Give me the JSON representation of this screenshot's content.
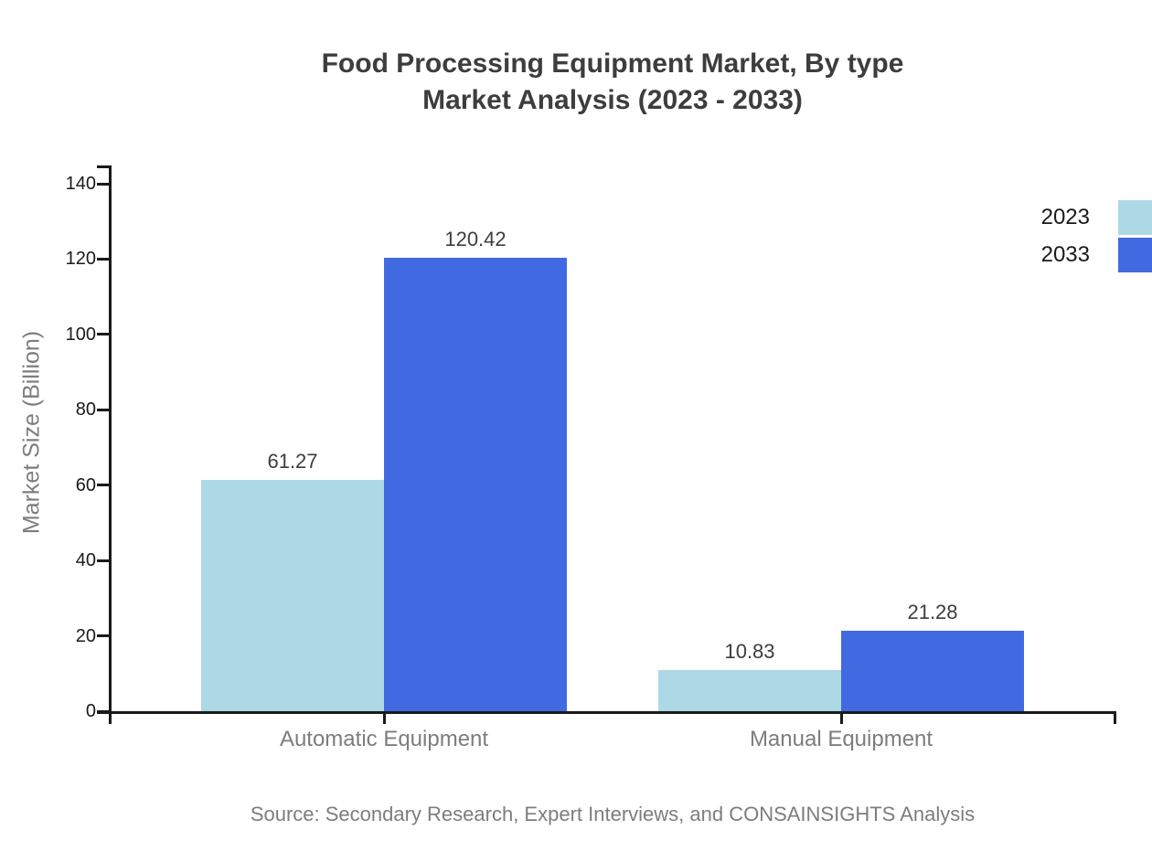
{
  "page": {
    "title_line1": "Food Processing Equipment Market, By type",
    "title_line2": "Market Analysis (2023 - 2033)",
    "source": "Source: Secondary Research, Expert Interviews, and CONSAINSIGHTS Analysis"
  },
  "chart_data": {
    "type": "bar",
    "title": "Food Processing Equipment Market, By type Market Analysis (2023 - 2033)",
    "categories": [
      "Automatic Equipment",
      "Manual Equipment"
    ],
    "series": [
      {
        "name": "2023",
        "color": "#ADD8E6",
        "values": [
          61.27,
          10.83
        ]
      },
      {
        "name": "2033",
        "color": "#4169E1",
        "values": [
          120.42,
          21.28
        ]
      }
    ],
    "xlabel": "",
    "ylabel": "Market Size (Billion)",
    "ylim": [
      0,
      140
    ],
    "yticks": [
      0,
      20,
      40,
      60,
      80,
      100,
      120,
      140
    ],
    "grid": false,
    "legend_position": "top-right"
  },
  "colors": {
    "axis": "#1a1a1a",
    "title_text": "#3d3d3d",
    "muted_text": "#7d7d7d",
    "series_2023": "#ADD8E6",
    "series_2033": "#4169E1"
  }
}
